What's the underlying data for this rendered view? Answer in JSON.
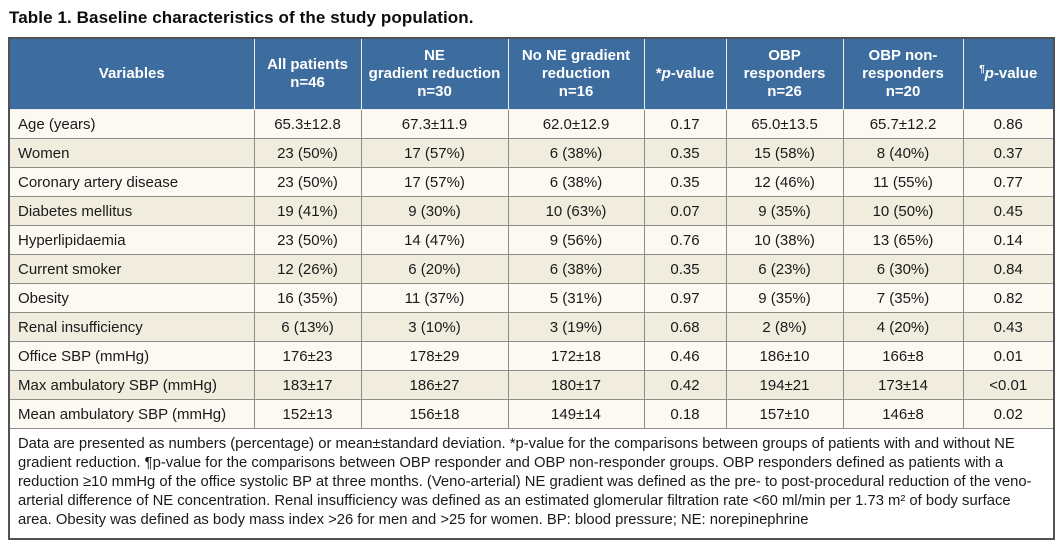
{
  "title": "Table 1. Baseline characteristics of the study population.",
  "colors": {
    "header_bg": "#3d6c9e",
    "header_text": "#ffffff",
    "row_light": "#fbf9f1",
    "row_cream": "#f0edde",
    "grid_line": "#8e8d89",
    "outer_border": "#515254"
  },
  "table": {
    "columns": [
      {
        "label": "Variables"
      },
      {
        "label": "All patients\nn=46"
      },
      {
        "label": "NE\ngradient reduction\nn=30"
      },
      {
        "label": "No NE gradient\nreduction\nn=16"
      },
      {
        "sup": "*",
        "italic": "p",
        "rest": "-value"
      },
      {
        "label": "OBP\nresponders\nn=26"
      },
      {
        "label": "OBP non-\nresponders\nn=20"
      },
      {
        "sup": "¶",
        "italic": "p",
        "rest": "-value"
      }
    ],
    "rows": [
      {
        "variable": "Age (years)",
        "values": [
          "65.3±12.8",
          "67.3±11.9",
          "62.0±12.9",
          "0.17",
          "65.0±13.5",
          "65.7±12.2",
          "0.86"
        ]
      },
      {
        "variable": "Women",
        "values": [
          "23 (50%)",
          "17 (57%)",
          "6 (38%)",
          "0.35",
          "15 (58%)",
          "8 (40%)",
          "0.37"
        ]
      },
      {
        "variable": "Coronary artery disease",
        "values": [
          "23 (50%)",
          "17 (57%)",
          "6 (38%)",
          "0.35",
          "12 (46%)",
          "11 (55%)",
          "0.77"
        ]
      },
      {
        "variable": "Diabetes mellitus",
        "values": [
          "19 (41%)",
          "9 (30%)",
          "10 (63%)",
          "0.07",
          "9 (35%)",
          "10 (50%)",
          "0.45"
        ]
      },
      {
        "variable": "Hyperlipidaemia",
        "values": [
          "23 (50%)",
          "14 (47%)",
          "9 (56%)",
          "0.76",
          "10 (38%)",
          "13 (65%)",
          "0.14"
        ]
      },
      {
        "variable": "Current smoker",
        "values": [
          "12 (26%)",
          "6 (20%)",
          "6 (38%)",
          "0.35",
          "6 (23%)",
          "6 (30%)",
          "0.84"
        ]
      },
      {
        "variable": "Obesity",
        "values": [
          "16 (35%)",
          "11 (37%)",
          "5 (31%)",
          "0.97",
          "9 (35%)",
          "7 (35%)",
          "0.82"
        ]
      },
      {
        "variable": "Renal insufficiency",
        "values": [
          "6 (13%)",
          "3 (10%)",
          "3 (19%)",
          "0.68",
          "2 (8%)",
          "4 (20%)",
          "0.43"
        ]
      },
      {
        "variable": "Office SBP (mmHg)",
        "values": [
          "176±23",
          "178±29",
          "172±18",
          "0.46",
          "186±10",
          "166±8",
          "0.01"
        ]
      },
      {
        "variable": "Max ambulatory SBP (mmHg)",
        "values": [
          "183±17",
          "186±27",
          "180±17",
          "0.42",
          "194±21",
          "173±14",
          "<0.01"
        ]
      },
      {
        "variable": "Mean ambulatory SBP (mmHg)",
        "values": [
          "152±13",
          "156±18",
          "149±14",
          "0.18",
          "157±10",
          "146±8",
          "0.02"
        ]
      }
    ],
    "footnote": "Data are presented as numbers (percentage) or mean±standard deviation. *p-value for the comparisons between groups of patients with and without NE gradient reduction. ¶p-value for the comparisons between OBP responder and OBP non-responder groups. OBP responders defined as patients with a reduction ≥10 mmHg of the office systolic BP at three months. (Veno-arterial) NE gradient was defined as the pre- to post-procedural reduction of the veno-arterial difference of NE concentration. Renal insufficiency was defined as an estimated glomerular filtration rate <60 ml/min per 1.73 m² of body surface area. Obesity was defined as body mass index >26 for men and >25 for women. BP: blood pressure; NE: norepinephrine"
  }
}
